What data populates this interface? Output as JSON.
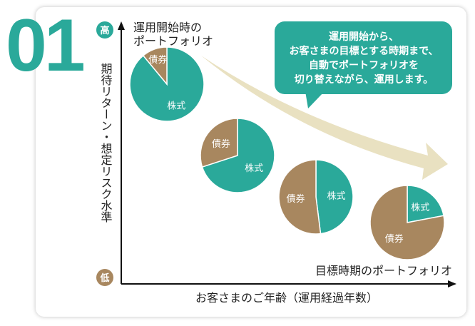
{
  "number": "01",
  "colors": {
    "stock": "#2aa99a",
    "bond": "#a8875f",
    "arrow": "#e9e1c1",
    "axis": "#111111"
  },
  "y_axis": {
    "label": "期待リターン・想定リスク水準",
    "high": "高",
    "low": "低"
  },
  "x_axis": {
    "label": "お客さまのご年齢（運用経過年数）"
  },
  "start_label": [
    "運用開始時の",
    "ポートフォリオ"
  ],
  "end_label": "目標時期のポートフォリオ",
  "callout": [
    "運用開始から、",
    "お客さまの目標とする時期まで、",
    "自動でポートフォリオを",
    "切り替えながら、運用します。"
  ],
  "pies": [
    {
      "stock_share": 0.89,
      "stock_label": "株式",
      "bond_label": "債券"
    },
    {
      "stock_share": 0.7,
      "stock_label": "株式",
      "bond_label": "債券"
    },
    {
      "stock_share": 0.48,
      "stock_label": "株式",
      "bond_label": "債券"
    },
    {
      "stock_share": 0.22,
      "stock_label": "株式",
      "bond_label": "債券"
    }
  ]
}
